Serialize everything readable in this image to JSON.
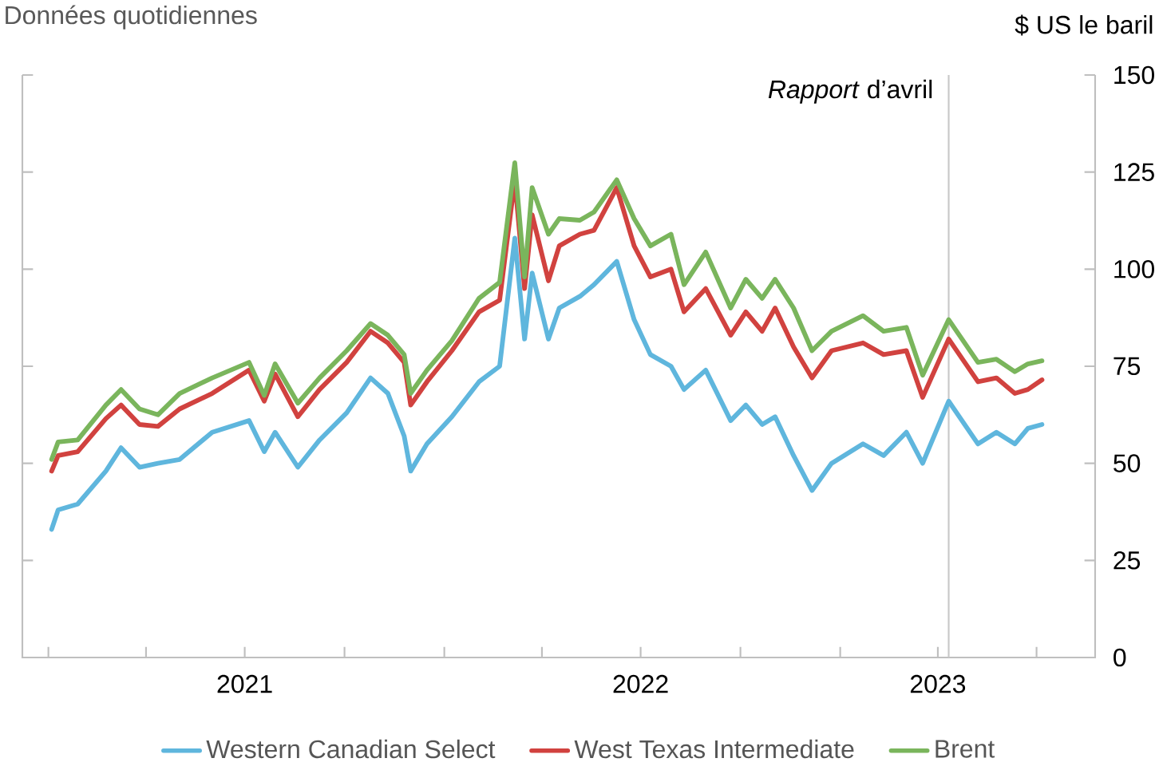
{
  "chart_data": {
    "type": "line",
    "annotations": [
      "Données quotidiennes"
    ],
    "ylabel": "$ US le baril",
    "x": [
      "2021-01-04",
      "2021-01-10",
      "2021-01-28",
      "2021-02-23",
      "2021-03-09",
      "2021-03-26",
      "2021-04-12",
      "2021-05-02",
      "2021-06-01",
      "2021-07-05",
      "2021-07-19",
      "2021-07-29",
      "2021-08-19",
      "2021-09-08",
      "2021-10-03",
      "2021-10-25",
      "2021-11-10",
      "2021-11-25",
      "2021-12-01",
      "2021-12-16",
      "2022-01-08",
      "2022-02-02",
      "2022-02-21",
      "2022-03-07",
      "2022-03-16",
      "2022-03-23",
      "2022-04-07",
      "2022-04-17",
      "2022-05-06",
      "2022-05-19",
      "2022-06-09",
      "2022-06-25",
      "2022-07-10",
      "2022-07-29",
      "2022-08-10",
      "2022-08-30",
      "2022-09-22",
      "2022-10-06",
      "2022-10-21",
      "2022-11-02",
      "2022-11-19",
      "2022-12-06",
      "2022-12-24",
      "2023-01-22",
      "2023-02-10",
      "2023-03-03",
      "2023-03-18",
      "2023-04-11",
      "2023-05-08",
      "2023-05-25",
      "2023-06-11",
      "2023-06-23",
      "2023-07-06"
    ],
    "series": [
      {
        "name": "Western Canadian Select",
        "color": "#5fb6dd",
        "values": [
          33,
          38,
          39.5,
          48,
          54,
          49,
          50,
          51,
          58,
          61,
          53,
          58,
          49,
          56,
          63,
          72,
          68,
          57,
          48,
          55,
          62,
          71,
          75,
          108,
          82,
          99,
          82,
          90,
          93,
          96,
          102,
          87,
          78,
          75,
          69,
          74,
          61,
          65,
          60,
          62,
          52,
          43,
          50,
          55,
          52,
          58,
          50,
          66,
          55,
          58,
          55,
          59,
          60
        ]
      },
      {
        "name": "West Texas Intermediate",
        "color": "#d1423f",
        "values": [
          48,
          52,
          53,
          61.5,
          65,
          60,
          59.5,
          64,
          68,
          74,
          66,
          73,
          62,
          69,
          76,
          84,
          81,
          76,
          65,
          71,
          79,
          89,
          92,
          123,
          95,
          114,
          97,
          106,
          109,
          110,
          121,
          106,
          98,
          100,
          89,
          95,
          83,
          89,
          84,
          90,
          80,
          72,
          79,
          81,
          78,
          79,
          67,
          82,
          71,
          72,
          68,
          69,
          71.5
        ]
      },
      {
        "name": "Brent",
        "color": "#7ab55c",
        "values": [
          51,
          55.5,
          56,
          65,
          69,
          64,
          62.5,
          68,
          72,
          76,
          67.5,
          75.6,
          65.5,
          72,
          79,
          86,
          83,
          78,
          68,
          74,
          81.6,
          92.5,
          96.6,
          127.4,
          98,
          121,
          109,
          113,
          112.6,
          114.7,
          123,
          113,
          106,
          109,
          96,
          104.4,
          90,
          97.4,
          92.5,
          97.4,
          90,
          79,
          84,
          88,
          84,
          85,
          72.7,
          87,
          76,
          76.8,
          73.6,
          75.6,
          76.4
        ]
      }
    ],
    "xlim": [
      "2020-12-08",
      "2023-08-24"
    ],
    "xticks": [
      {
        "value": "2021-01-01",
        "label": null
      },
      {
        "value": "2021-04-01",
        "label": null
      },
      {
        "value": "2021-07-01",
        "label": "2021"
      },
      {
        "value": "2021-10-01",
        "label": null
      },
      {
        "value": "2022-01-01",
        "label": null
      },
      {
        "value": "2022-04-01",
        "label": null
      },
      {
        "value": "2022-07-01",
        "label": "2022"
      },
      {
        "value": "2022-10-01",
        "label": null
      },
      {
        "value": "2023-01-01",
        "label": null
      },
      {
        "value": "2023-04-01",
        "label": "2023"
      },
      {
        "value": "2023-07-01",
        "label": null
      }
    ],
    "ylim": [
      0,
      150
    ],
    "yticks": [
      0,
      25,
      50,
      75,
      100,
      125,
      150
    ],
    "ref_lines": [
      {
        "axis": "x",
        "value": "2023-04-11",
        "label": "*Rapport* d’avril",
        "color": "#c8c8c8"
      }
    ],
    "legend": "bottom",
    "line_style": "solid"
  }
}
